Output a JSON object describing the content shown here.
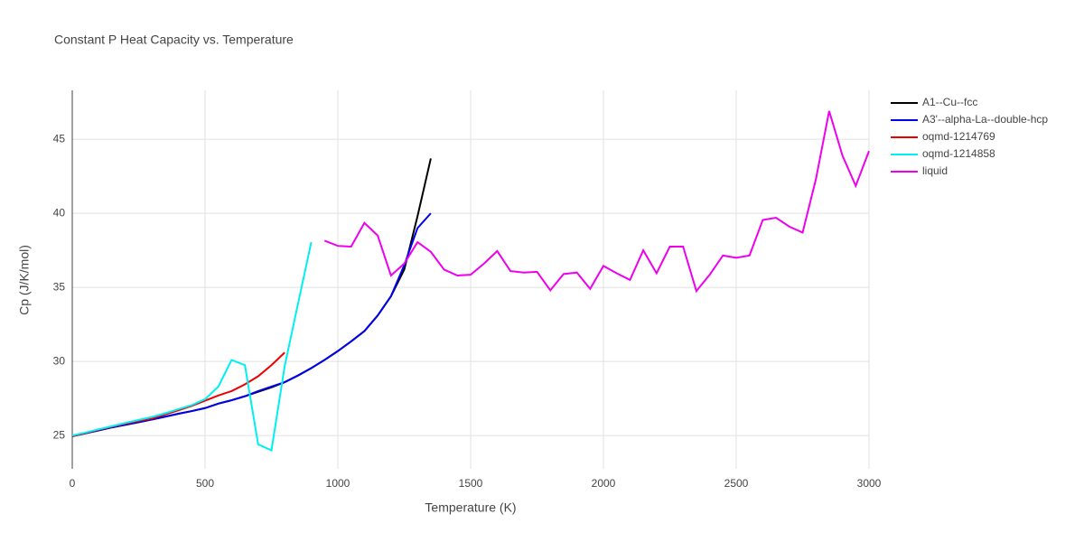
{
  "chart_data": {
    "type": "line",
    "title": "Constant P Heat Capacity vs. Temperature",
    "x_label": "Temperature (K)",
    "y_label": "Cp (J/K/mol)",
    "xlim": [
      0,
      3000
    ],
    "xticks": [
      0,
      500,
      1000,
      1500,
      2000,
      2500,
      3000
    ],
    "ylim": [
      22.75,
      48.3
    ],
    "yticks": [
      25,
      30,
      35,
      40,
      45
    ],
    "grid": true,
    "legend": "right",
    "series": [
      {
        "name": "A1--Cu--fcc",
        "color": "#000000",
        "x": [
          0,
          50,
          100,
          150,
          200,
          250,
          300,
          350,
          400,
          450,
          500,
          550,
          600,
          650,
          700,
          750,
          800,
          850,
          900,
          950,
          1000,
          1050,
          1100,
          1150,
          1200,
          1250,
          1300,
          1350
        ],
        "values": [
          24.95,
          25.15,
          25.35,
          25.55,
          25.72,
          25.9,
          26.08,
          26.27,
          26.47,
          26.65,
          26.85,
          27.15,
          27.38,
          27.65,
          27.95,
          28.25,
          28.6,
          29.05,
          29.55,
          30.1,
          30.7,
          31.35,
          32.05,
          33.1,
          34.4,
          36.2,
          39.8,
          43.7
        ]
      },
      {
        "name": "A3'--alpha-La--double-hcp",
        "color": "#0000ee",
        "x": [
          0,
          50,
          100,
          150,
          200,
          250,
          300,
          350,
          400,
          450,
          500,
          550,
          600,
          650,
          700,
          750,
          800,
          850,
          900,
          950,
          1000,
          1050,
          1100,
          1150,
          1200,
          1250,
          1300,
          1350
        ],
        "values": [
          24.95,
          25.15,
          25.35,
          25.55,
          25.72,
          25.9,
          26.08,
          26.27,
          26.47,
          26.65,
          26.85,
          27.15,
          27.38,
          27.65,
          28.0,
          28.3,
          28.6,
          29.05,
          29.55,
          30.1,
          30.7,
          31.35,
          32.05,
          33.1,
          34.4,
          36.5,
          39.0,
          40.0
        ]
      },
      {
        "name": "oqmd-1214769",
        "color": "#ee0000",
        "x": [
          0,
          50,
          100,
          150,
          200,
          250,
          300,
          350,
          400,
          450,
          500,
          550,
          600,
          650,
          700,
          750,
          800
        ],
        "values": [
          24.95,
          25.17,
          25.39,
          25.6,
          25.8,
          25.98,
          26.15,
          26.42,
          26.7,
          27.0,
          27.35,
          27.7,
          28.0,
          28.45,
          29.0,
          29.75,
          30.6
        ]
      },
      {
        "name": "oqmd-1214858",
        "color": "#00f0f0",
        "x": [
          0,
          50,
          100,
          150,
          200,
          250,
          300,
          350,
          400,
          450,
          500,
          550,
          600,
          650,
          700,
          750,
          800,
          850,
          900
        ],
        "values": [
          25.0,
          25.2,
          25.42,
          25.63,
          25.85,
          26.05,
          26.25,
          26.5,
          26.78,
          27.05,
          27.45,
          28.3,
          30.1,
          29.75,
          24.4,
          24.0,
          29.7,
          33.9,
          38.05
        ]
      },
      {
        "name": "liquid",
        "color": "#ee00ee",
        "x": [
          950,
          1000,
          1050,
          1100,
          1150,
          1200,
          1250,
          1300,
          1350,
          1400,
          1450,
          1500,
          1550,
          1600,
          1650,
          1700,
          1750,
          1800,
          1850,
          1900,
          1950,
          2000,
          2050,
          2100,
          2150,
          2200,
          2250,
          2300,
          2350,
          2400,
          2450,
          2500,
          2550,
          2600,
          2650,
          2700,
          2750,
          2800,
          2850,
          2900,
          2950,
          3000
        ],
        "values": [
          38.15,
          37.8,
          37.75,
          39.35,
          38.5,
          35.8,
          36.6,
          38.05,
          37.4,
          36.2,
          35.8,
          35.85,
          36.6,
          37.45,
          36.1,
          36.0,
          36.05,
          34.8,
          35.9,
          36.0,
          34.9,
          36.45,
          35.95,
          35.5,
          37.5,
          35.95,
          37.75,
          37.75,
          34.75,
          35.85,
          37.15,
          37.0,
          37.15,
          39.55,
          39.7,
          39.1,
          38.7,
          42.3,
          46.9,
          43.9,
          41.85,
          44.2
        ]
      }
    ]
  }
}
